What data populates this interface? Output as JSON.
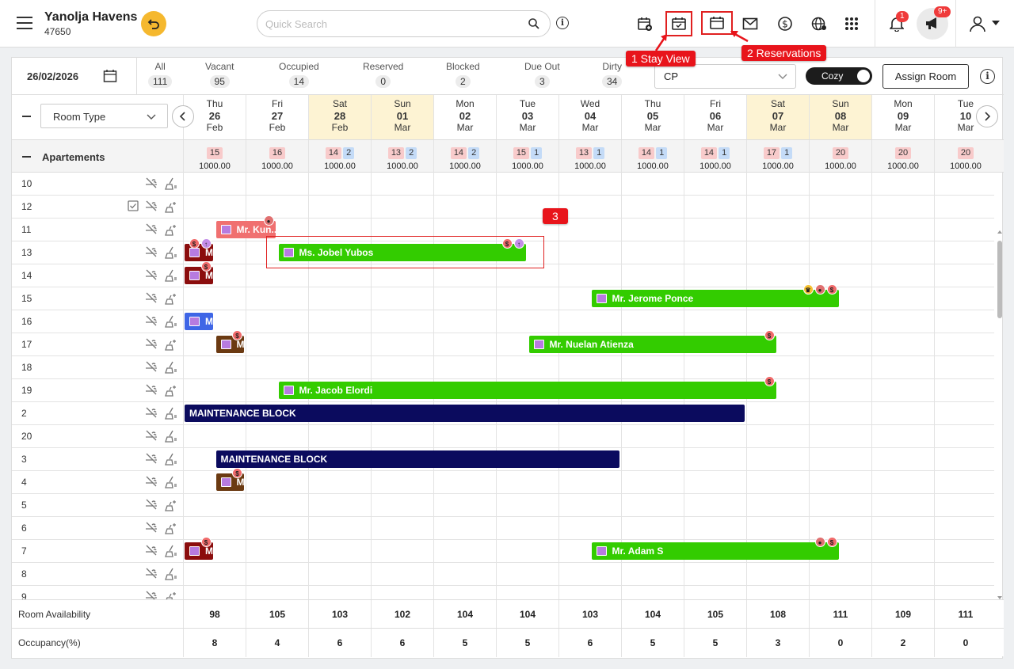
{
  "header": {
    "property_name": "Yanolja Havens",
    "property_id": "47650",
    "search_placeholder": "Quick Search",
    "notification_count": "1",
    "announcement_count": "9+"
  },
  "annotations": {
    "a1": "1 Stay View",
    "a2": "2 Reservations",
    "a3": "3"
  },
  "filters": {
    "date": "26/02/2026",
    "stats": [
      {
        "label": "All",
        "count": "111"
      },
      {
        "label": "Vacant",
        "count": "95"
      },
      {
        "label": "Occupied",
        "count": "14"
      },
      {
        "label": "Reserved",
        "count": "0"
      },
      {
        "label": "Blocked",
        "count": "2"
      },
      {
        "label": "Due Out",
        "count": "3"
      },
      {
        "label": "Dirty",
        "count": "34"
      }
    ],
    "rate_plan": "CP",
    "toggle_label": "Cozy",
    "assign_label": "Assign Room"
  },
  "grid": {
    "room_type_label": "Room Type",
    "days": [
      {
        "dow": "Thu",
        "day": "26",
        "mon": "Feb"
      },
      {
        "dow": "Fri",
        "day": "27",
        "mon": "Feb"
      },
      {
        "dow": "Sat",
        "day": "28",
        "mon": "Feb"
      },
      {
        "dow": "Sun",
        "day": "01",
        "mon": "Mar"
      },
      {
        "dow": "Mon",
        "day": "02",
        "mon": "Mar"
      },
      {
        "dow": "Tue",
        "day": "03",
        "mon": "Mar"
      },
      {
        "dow": "Wed",
        "day": "04",
        "mon": "Mar"
      },
      {
        "dow": "Thu",
        "day": "05",
        "mon": "Mar"
      },
      {
        "dow": "Fri",
        "day": "06",
        "mon": "Mar"
      },
      {
        "dow": "Sat",
        "day": "07",
        "mon": "Mar"
      },
      {
        "dow": "Sun",
        "day": "08",
        "mon": "Mar"
      },
      {
        "dow": "Mon",
        "day": "09",
        "mon": "Mar"
      },
      {
        "dow": "Tue",
        "day": "10",
        "mon": "Mar"
      }
    ],
    "group": {
      "label": "Apartements",
      "cells": [
        {
          "avail": "15",
          "block": "",
          "rate": "1000.00"
        },
        {
          "avail": "16",
          "block": "",
          "rate": "1000.00"
        },
        {
          "avail": "14",
          "block": "2",
          "rate": "1000.00"
        },
        {
          "avail": "13",
          "block": "2",
          "rate": "1000.00"
        },
        {
          "avail": "14",
          "block": "2",
          "rate": "1000.00"
        },
        {
          "avail": "15",
          "block": "1",
          "rate": "1000.00"
        },
        {
          "avail": "13",
          "block": "1",
          "rate": "1000.00"
        },
        {
          "avail": "14",
          "block": "1",
          "rate": "1000.00"
        },
        {
          "avail": "14",
          "block": "1",
          "rate": "1000.00"
        },
        {
          "avail": "17",
          "block": "1",
          "rate": "1000.00"
        },
        {
          "avail": "20",
          "block": "",
          "rate": "1000.00"
        },
        {
          "avail": "20",
          "block": "",
          "rate": "1000.00"
        },
        {
          "avail": "20",
          "block": "",
          "rate": "1000.00"
        }
      ]
    },
    "rooms": [
      "10",
      "12",
      "11",
      "13",
      "14",
      "15",
      "16",
      "17",
      "18",
      "19",
      "2",
      "20",
      "3",
      "4",
      "5",
      "6",
      "7",
      "8",
      "9"
    ],
    "bookings": [
      {
        "row": 2,
        "label": "Mr. Kun...",
        "color": "#f07070",
        "start": 0.5,
        "end": 1.5,
        "icons": [
          "ps"
        ]
      },
      {
        "row": 3,
        "label": "M",
        "color": "#8b0d0d",
        "start": 0.0,
        "end": 0.5,
        "icons": [
          "dl",
          "up"
        ]
      },
      {
        "row": 3,
        "label": "Ms. Jobel Yubos",
        "color": "#33cc00",
        "start": 1.5,
        "end": 5.5,
        "icons": [
          "dl",
          "up"
        ]
      },
      {
        "row": 4,
        "label": "M",
        "color": "#8b0d0d",
        "start": 0.0,
        "end": 0.5,
        "icons": [
          "dl"
        ]
      },
      {
        "row": 5,
        "label": "Mr. Jerome Ponce",
        "color": "#33cc00",
        "start": 6.5,
        "end": 10.5,
        "icons": [
          "cr",
          "ps",
          "dl"
        ]
      },
      {
        "row": 6,
        "label": "M",
        "color": "#3f66e6",
        "start": 0.0,
        "end": 0.5,
        "icons": []
      },
      {
        "row": 7,
        "label": "M",
        "color": "#6b3a12",
        "start": 0.5,
        "end": 1.0,
        "icons": [
          "dl"
        ]
      },
      {
        "row": 7,
        "label": "Mr. Nuelan Atienza",
        "color": "#33cc00",
        "start": 5.5,
        "end": 9.5,
        "icons": [
          "dl"
        ]
      },
      {
        "row": 9,
        "label": "Mr. Jacob Elordi",
        "color": "#33cc00",
        "start": 1.5,
        "end": 9.5,
        "icons": [
          "dl"
        ]
      },
      {
        "row": 10,
        "label": "MAINTENANCE BLOCK",
        "color": "#0b0b5e",
        "start": 0.0,
        "end": 9.0,
        "icons": [],
        "maint": true
      },
      {
        "row": 12,
        "label": "MAINTENANCE BLOCK",
        "color": "#0b0b5e",
        "start": 0.5,
        "end": 7.0,
        "icons": [],
        "maint": true
      },
      {
        "row": 13,
        "label": "M",
        "color": "#6b3a12",
        "start": 0.5,
        "end": 1.0,
        "icons": [
          "dl"
        ]
      },
      {
        "row": 16,
        "label": "M",
        "color": "#8b0d0d",
        "start": 0.0,
        "end": 0.5,
        "icons": [
          "dl"
        ]
      },
      {
        "row": 16,
        "label": "Mr. Adam S",
        "color": "#33cc00",
        "start": 6.5,
        "end": 10.5,
        "icons": [
          "ps",
          "dl"
        ]
      }
    ]
  },
  "footer": {
    "availability_label": "Room Availability",
    "availability": [
      "98",
      "105",
      "103",
      "102",
      "104",
      "104",
      "103",
      "104",
      "105",
      "108",
      "111",
      "109",
      "111"
    ],
    "occupancy_label": "Occupancy(%)",
    "occupancy": [
      "8",
      "4",
      "6",
      "6",
      "5",
      "5",
      "6",
      "5",
      "5",
      "3",
      "0",
      "2",
      "0"
    ]
  },
  "colors": {
    "accent": "#f5b82e",
    "occupied": "#33cc00",
    "maintenance": "#0b0b5e",
    "annotation": "#e8141b"
  }
}
